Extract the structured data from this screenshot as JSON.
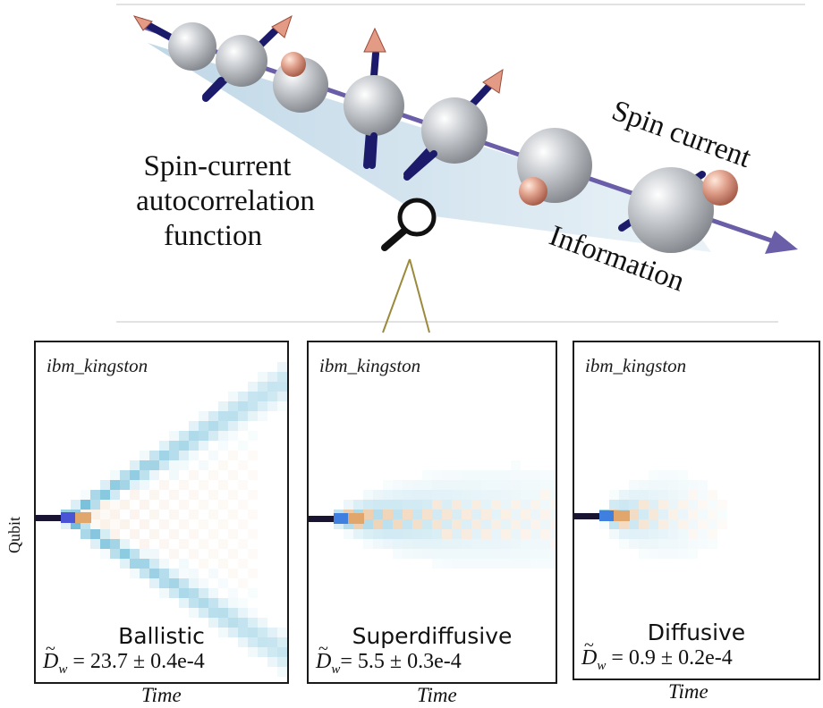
{
  "illustration": {
    "left_caption": [
      "Spin-current",
      "autocorrelation",
      "function"
    ],
    "arrow_label_top": "Spin current",
    "arrow_label_bottom": "Information"
  },
  "qubit_axis_label": "Qubit",
  "colors": {
    "cone_fill": "#c9dce8",
    "axis_arrow": "#6a5ea8",
    "sphere": "#b9bcc1",
    "spin_arrow_shaft": "#1c1b6b",
    "spin_arrow_head": "#e7a791",
    "heatmap_blue": "#6bbbd8",
    "heatmap_orange": "#e0a66b",
    "heatmap_dark": "#1a1433"
  },
  "panels": [
    {
      "device": "ibm_kingston",
      "regime": "Ballistic",
      "dw_value": "= 23.7 ± 0.4e-4",
      "time_label": "Time"
    },
    {
      "device": "ibm_kingston",
      "regime": "Superdiffusive",
      "dw_value": "= 5.5 ± 0.3e-4",
      "time_label": "Time"
    },
    {
      "device": "ibm_kingston",
      "regime": "Diffusive",
      "dw_value": "= 0.9 ± 0.2e-4",
      "time_label": "Time"
    }
  ]
}
